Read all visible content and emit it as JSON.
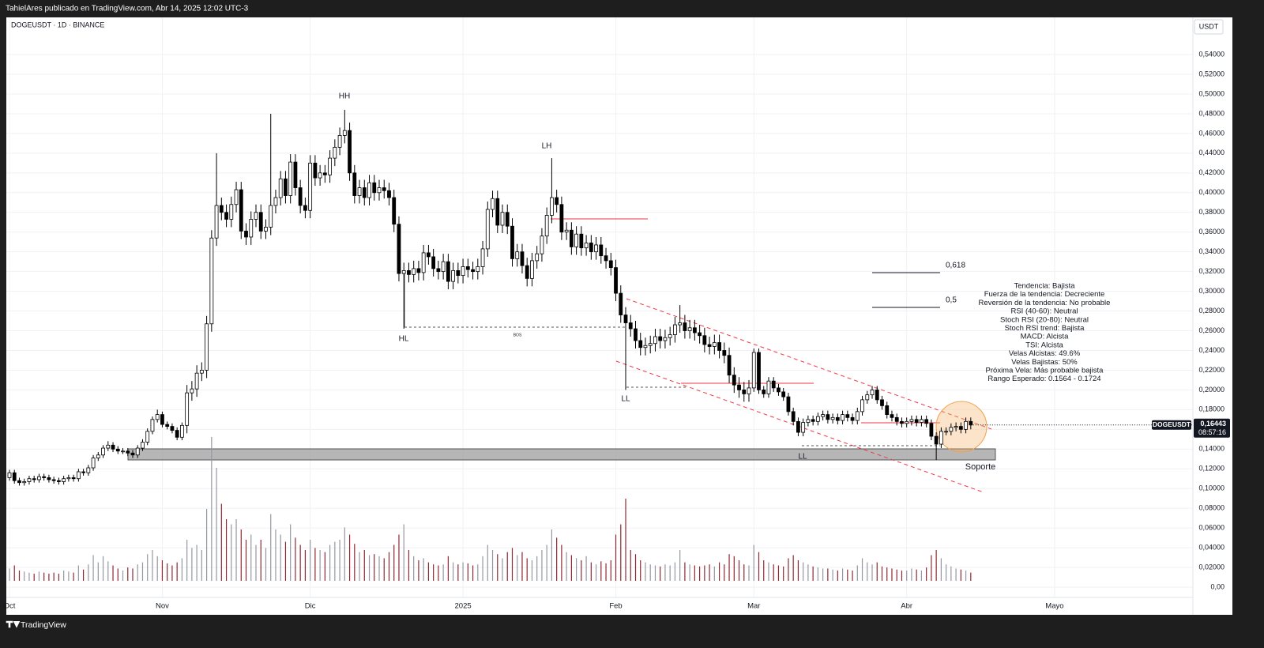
{
  "header": {
    "publisher": "TahielAres publicado en TradingView.com, Abr 14, 2025 12:02 UTC-3",
    "symbol": "DOGEUSDT · 1D · BINANCE",
    "currency": "USDT"
  },
  "chart_data": {
    "type": "candlestick",
    "x": [
      0,
      1,
      2,
      3,
      4,
      5,
      6,
      7,
      8,
      9,
      10,
      11,
      12,
      13,
      14,
      15,
      16,
      17,
      18,
      19,
      20,
      21,
      22,
      23,
      24,
      25,
      26,
      27,
      28,
      29,
      30,
      31,
      32,
      33,
      34,
      35,
      36,
      37,
      38,
      39,
      40,
      41,
      42,
      43,
      44,
      45,
      46,
      47,
      48,
      49,
      50,
      51,
      52,
      53,
      54,
      55,
      56,
      57,
      58,
      59,
      60,
      61,
      62,
      63,
      64,
      65,
      66,
      67,
      68,
      69,
      70,
      71,
      72,
      73,
      74,
      75,
      76,
      77,
      78,
      79,
      80,
      81,
      82,
      83,
      84,
      85,
      86,
      87,
      88,
      89,
      90,
      91,
      92,
      93,
      94,
      95,
      96,
      97,
      98,
      99,
      100,
      101,
      102,
      103,
      104,
      105,
      106,
      107,
      108,
      109,
      110,
      111,
      112,
      113,
      114,
      115,
      116,
      117,
      118,
      119,
      120,
      121,
      122,
      123,
      124,
      125,
      126,
      127,
      128,
      129,
      130,
      131,
      132,
      133,
      134,
      135,
      136,
      137,
      138,
      139,
      140,
      141,
      142,
      143,
      144,
      145,
      146,
      147,
      148,
      149,
      150,
      151,
      152,
      153,
      154,
      155,
      156,
      157,
      158,
      159,
      160,
      161,
      162,
      163,
      164,
      165,
      166,
      167,
      168,
      169,
      170,
      171,
      172,
      173,
      174,
      175,
      176,
      177,
      178,
      179,
      180,
      181,
      182,
      183,
      184,
      185,
      186,
      187,
      188,
      189,
      190,
      191,
      192,
      193,
      194,
      195
    ],
    "open": [
      0.111,
      0.116,
      0.108,
      0.106,
      0.107,
      0.11,
      0.109,
      0.112,
      0.111,
      0.109,
      0.108,
      0.107,
      0.11,
      0.111,
      0.11,
      0.117,
      0.116,
      0.121,
      0.131,
      0.134,
      0.141,
      0.144,
      0.14,
      0.138,
      0.138,
      0.136,
      0.134,
      0.141,
      0.147,
      0.158,
      0.17,
      0.175,
      0.165,
      0.163,
      0.159,
      0.152,
      0.164,
      0.197,
      0.201,
      0.217,
      0.22,
      0.267,
      0.354,
      0.387,
      0.38,
      0.373,
      0.388,
      0.403,
      0.361,
      0.355,
      0.373,
      0.38,
      0.361,
      0.365,
      0.387,
      0.395,
      0.414,
      0.397,
      0.431,
      0.405,
      0.387,
      0.382,
      0.43,
      0.415,
      0.42,
      0.418,
      0.435,
      0.446,
      0.458,
      0.463,
      0.42,
      0.397,
      0.405,
      0.395,
      0.41,
      0.4,
      0.405,
      0.402,
      0.395,
      0.368,
      0.318,
      0.321,
      0.317,
      0.323,
      0.319,
      0.339,
      0.335,
      0.323,
      0.32,
      0.33,
      0.31,
      0.321,
      0.316,
      0.325,
      0.322,
      0.32,
      0.325,
      0.343,
      0.383,
      0.394,
      0.367,
      0.38,
      0.366,
      0.333,
      0.34,
      0.326,
      0.313,
      0.331,
      0.338,
      0.356,
      0.377,
      0.395,
      0.388,
      0.36,
      0.362,
      0.345,
      0.358,
      0.344,
      0.349,
      0.34,
      0.347,
      0.336,
      0.331,
      0.324,
      0.298,
      0.276,
      0.268,
      0.262,
      0.25,
      0.243,
      0.245,
      0.247,
      0.254,
      0.25,
      0.253,
      0.256,
      0.266,
      0.268,
      0.26,
      0.263,
      0.258,
      0.255,
      0.246,
      0.244,
      0.248,
      0.24,
      0.235,
      0.215,
      0.205,
      0.2,
      0.196,
      0.202,
      0.238,
      0.2,
      0.196,
      0.209,
      0.202,
      0.198,
      0.193,
      0.178,
      0.168,
      0.157,
      0.167,
      0.17,
      0.168,
      0.173,
      0.175,
      0.17,
      0.172,
      0.169,
      0.175,
      0.172,
      0.169,
      0.178,
      0.19,
      0.195,
      0.2,
      0.19,
      0.184,
      0.175,
      0.172,
      0.168,
      0.166,
      0.168,
      0.17,
      0.167,
      0.17,
      0.166,
      0.153,
      0.145,
      0.158,
      0.158,
      0.162,
      0.163,
      0.16,
      0.168
    ],
    "high": [
      0.119,
      0.119,
      0.111,
      0.11,
      0.113,
      0.113,
      0.115,
      0.115,
      0.114,
      0.112,
      0.111,
      0.113,
      0.114,
      0.114,
      0.12,
      0.12,
      0.124,
      0.134,
      0.137,
      0.144,
      0.148,
      0.147,
      0.143,
      0.141,
      0.141,
      0.139,
      0.144,
      0.15,
      0.161,
      0.173,
      0.18,
      0.178,
      0.168,
      0.166,
      0.162,
      0.167,
      0.205,
      0.209,
      0.225,
      0.228,
      0.275,
      0.362,
      0.44,
      0.395,
      0.388,
      0.396,
      0.411,
      0.411,
      0.369,
      0.381,
      0.388,
      0.388,
      0.373,
      0.48,
      0.403,
      0.422,
      0.422,
      0.439,
      0.439,
      0.413,
      0.395,
      0.438,
      0.438,
      0.428,
      0.428,
      0.443,
      0.454,
      0.466,
      0.484,
      0.471,
      0.428,
      0.413,
      0.413,
      0.418,
      0.418,
      0.413,
      0.413,
      0.41,
      0.403,
      0.376,
      0.329,
      0.329,
      0.331,
      0.331,
      0.347,
      0.347,
      0.343,
      0.331,
      0.338,
      0.338,
      0.329,
      0.329,
      0.333,
      0.333,
      0.33,
      0.333,
      0.351,
      0.391,
      0.402,
      0.402,
      0.388,
      0.388,
      0.374,
      0.348,
      0.348,
      0.334,
      0.339,
      0.346,
      0.364,
      0.385,
      0.435,
      0.403,
      0.396,
      0.37,
      0.37,
      0.366,
      0.366,
      0.357,
      0.357,
      0.355,
      0.355,
      0.344,
      0.339,
      0.332,
      0.306,
      0.284,
      0.276,
      0.27,
      0.258,
      0.253,
      0.255,
      0.262,
      0.262,
      0.261,
      0.264,
      0.274,
      0.286,
      0.276,
      0.271,
      0.271,
      0.266,
      0.263,
      0.254,
      0.256,
      0.256,
      0.248,
      0.243,
      0.223,
      0.213,
      0.208,
      0.21,
      0.242,
      0.242,
      0.204,
      0.213,
      0.213,
      0.206,
      0.202,
      0.197,
      0.182,
      0.172,
      0.171,
      0.174,
      0.174,
      0.177,
      0.179,
      0.179,
      0.176,
      0.176,
      0.179,
      0.179,
      0.176,
      0.182,
      0.194,
      0.199,
      0.204,
      0.204,
      0.194,
      0.188,
      0.179,
      0.176,
      0.172,
      0.172,
      0.174,
      0.174,
      0.174,
      0.174,
      0.17,
      0.157,
      0.162,
      0.162,
      0.166,
      0.167,
      0.167,
      0.172,
      0.172
    ],
    "low": [
      0.108,
      0.105,
      0.103,
      0.103,
      0.104,
      0.106,
      0.106,
      0.108,
      0.106,
      0.105,
      0.104,
      0.104,
      0.107,
      0.107,
      0.107,
      0.113,
      0.113,
      0.118,
      0.128,
      0.131,
      0.138,
      0.137,
      0.135,
      0.135,
      0.133,
      0.131,
      0.131,
      0.138,
      0.144,
      0.155,
      0.167,
      0.162,
      0.16,
      0.156,
      0.149,
      0.149,
      0.156,
      0.189,
      0.193,
      0.209,
      0.212,
      0.259,
      0.346,
      0.372,
      0.365,
      0.365,
      0.38,
      0.353,
      0.347,
      0.347,
      0.365,
      0.353,
      0.353,
      0.357,
      0.379,
      0.387,
      0.389,
      0.389,
      0.397,
      0.379,
      0.374,
      0.374,
      0.407,
      0.407,
      0.41,
      0.41,
      0.427,
      0.438,
      0.45,
      0.412,
      0.389,
      0.389,
      0.387,
      0.387,
      0.392,
      0.392,
      0.394,
      0.387,
      0.36,
      0.31,
      0.262,
      0.309,
      0.309,
      0.311,
      0.311,
      0.327,
      0.315,
      0.312,
      0.312,
      0.302,
      0.302,
      0.308,
      0.308,
      0.314,
      0.312,
      0.312,
      0.317,
      0.335,
      0.375,
      0.359,
      0.359,
      0.358,
      0.325,
      0.325,
      0.318,
      0.305,
      0.305,
      0.323,
      0.33,
      0.348,
      0.369,
      0.38,
      0.352,
      0.352,
      0.337,
      0.337,
      0.336,
      0.336,
      0.332,
      0.332,
      0.328,
      0.323,
      0.316,
      0.29,
      0.268,
      0.2,
      0.254,
      0.242,
      0.235,
      0.235,
      0.237,
      0.239,
      0.242,
      0.242,
      0.245,
      0.248,
      0.258,
      0.252,
      0.252,
      0.25,
      0.247,
      0.238,
      0.236,
      0.236,
      0.232,
      0.227,
      0.207,
      0.197,
      0.192,
      0.188,
      0.188,
      0.198,
      0.196,
      0.192,
      0.192,
      0.198,
      0.194,
      0.189,
      0.174,
      0.164,
      0.153,
      0.153,
      0.163,
      0.164,
      0.164,
      0.169,
      0.166,
      0.166,
      0.165,
      0.165,
      0.168,
      0.165,
      0.165,
      0.174,
      0.186,
      0.191,
      0.186,
      0.18,
      0.171,
      0.168,
      0.164,
      0.162,
      0.162,
      0.164,
      0.163,
      0.163,
      0.162,
      0.149,
      0.129,
      0.141,
      0.154,
      0.154,
      0.158,
      0.156,
      0.156,
      0.16
    ],
    "close": [
      0.116,
      0.108,
      0.106,
      0.107,
      0.11,
      0.109,
      0.112,
      0.111,
      0.109,
      0.108,
      0.107,
      0.11,
      0.111,
      0.11,
      0.117,
      0.116,
      0.121,
      0.131,
      0.134,
      0.141,
      0.144,
      0.14,
      0.138,
      0.138,
      0.136,
      0.134,
      0.141,
      0.147,
      0.158,
      0.17,
      0.175,
      0.165,
      0.163,
      0.159,
      0.152,
      0.164,
      0.197,
      0.201,
      0.217,
      0.22,
      0.267,
      0.354,
      0.387,
      0.38,
      0.373,
      0.388,
      0.403,
      0.361,
      0.355,
      0.373,
      0.38,
      0.361,
      0.365,
      0.387,
      0.395,
      0.414,
      0.397,
      0.431,
      0.405,
      0.387,
      0.382,
      0.43,
      0.415,
      0.42,
      0.418,
      0.435,
      0.446,
      0.458,
      0.463,
      0.42,
      0.397,
      0.405,
      0.395,
      0.41,
      0.4,
      0.405,
      0.402,
      0.395,
      0.368,
      0.318,
      0.321,
      0.317,
      0.323,
      0.319,
      0.339,
      0.335,
      0.323,
      0.32,
      0.33,
      0.31,
      0.321,
      0.316,
      0.325,
      0.322,
      0.32,
      0.325,
      0.343,
      0.383,
      0.394,
      0.367,
      0.38,
      0.366,
      0.333,
      0.34,
      0.326,
      0.313,
      0.331,
      0.338,
      0.356,
      0.377,
      0.395,
      0.388,
      0.36,
      0.362,
      0.345,
      0.358,
      0.344,
      0.349,
      0.34,
      0.347,
      0.336,
      0.331,
      0.324,
      0.298,
      0.276,
      0.268,
      0.262,
      0.25,
      0.243,
      0.245,
      0.247,
      0.254,
      0.25,
      0.253,
      0.256,
      0.266,
      0.268,
      0.26,
      0.263,
      0.258,
      0.255,
      0.246,
      0.244,
      0.248,
      0.24,
      0.235,
      0.215,
      0.205,
      0.2,
      0.196,
      0.202,
      0.238,
      0.2,
      0.196,
      0.209,
      0.202,
      0.198,
      0.193,
      0.178,
      0.168,
      0.157,
      0.167,
      0.17,
      0.168,
      0.173,
      0.175,
      0.17,
      0.172,
      0.169,
      0.175,
      0.172,
      0.169,
      0.178,
      0.19,
      0.195,
      0.2,
      0.19,
      0.184,
      0.175,
      0.172,
      0.168,
      0.166,
      0.168,
      0.17,
      0.167,
      0.17,
      0.166,
      0.153,
      0.145,
      0.158,
      0.158,
      0.162,
      0.163,
      0.16,
      0.168,
      0.16443
    ],
    "volume": [
      1.2,
      1.5,
      1.0,
      0.9,
      0.8,
      0.7,
      0.9,
      0.8,
      0.7,
      0.8,
      0.7,
      1.0,
      0.9,
      0.8,
      1.5,
      1.1,
      1.6,
      2.5,
      1.8,
      2.4,
      1.9,
      1.5,
      1.2,
      1.0,
      1.3,
      1.2,
      1.6,
      1.8,
      2.6,
      3.0,
      2.4,
      2.0,
      1.7,
      1.5,
      1.8,
      2.2,
      4.0,
      3.2,
      3.5,
      3.0,
      7.0,
      14.0,
      11.0,
      7.5,
      6.0,
      5.5,
      6.0,
      5.0,
      4.0,
      4.5,
      3.5,
      4.0,
      3.2,
      6.5,
      5.0,
      4.5,
      3.8,
      5.5,
      4.2,
      3.5,
      3.0,
      4.0,
      3.2,
      3.0,
      2.8,
      3.5,
      3.8,
      4.0,
      5.2,
      4.5,
      3.6,
      2.8,
      3.0,
      2.5,
      2.6,
      2.4,
      2.2,
      2.8,
      3.5,
      4.5,
      5.5,
      3.0,
      2.4,
      2.0,
      2.2,
      1.8,
      1.6,
      1.5,
      1.6,
      2.4,
      1.8,
      1.6,
      1.8,
      1.7,
      1.5,
      1.6,
      2.4,
      3.5,
      3.0,
      2.6,
      2.2,
      2.8,
      3.2,
      2.5,
      2.8,
      2.2,
      2.0,
      2.4,
      3.0,
      3.5,
      5.0,
      4.2,
      3.5,
      2.8,
      2.5,
      2.2,
      2.0,
      2.4,
      1.8,
      1.6,
      1.9,
      1.7,
      2.0,
      4.5,
      5.5,
      8.0,
      3.0,
      2.6,
      2.0,
      1.8,
      1.6,
      1.5,
      1.4,
      1.6,
      1.5,
      1.8,
      3.0,
      1.8,
      1.6,
      1.5,
      1.4,
      1.5,
      1.6,
      1.4,
      1.8,
      1.6,
      2.6,
      2.4,
      2.0,
      1.6,
      1.5,
      3.5,
      2.8,
      2.0,
      1.8,
      1.6,
      1.5,
      1.4,
      2.2,
      2.5,
      2.0,
      1.8,
      1.6,
      1.4,
      1.3,
      1.2,
      1.2,
      1.1,
      1.0,
      1.2,
      1.1,
      1.0,
      1.5,
      2.2,
      1.8,
      1.6,
      1.8,
      1.4,
      1.3,
      1.2,
      1.1,
      1.0,
      1.0,
      1.2,
      1.1,
      1.0,
      1.3,
      2.5,
      3.0,
      2.2,
      1.6,
      1.4,
      1.2,
      1.1,
      1.0,
      0.8
    ],
    "xlim": [
      -0.64,
      240.06
    ],
    "xticks": [
      {
        "value": 0,
        "label": "Oct"
      },
      {
        "value": 31,
        "label": "Nov"
      },
      {
        "value": 61,
        "label": "Dic"
      },
      {
        "value": 92,
        "label": "2025"
      },
      {
        "value": 123,
        "label": "Feb"
      },
      {
        "value": 151,
        "label": "Mar"
      },
      {
        "value": 182,
        "label": "Abr"
      },
      {
        "value": 212,
        "label": "Mayo"
      }
    ],
    "ylim": [
      -0.0104,
      0.5777
    ],
    "yticks": [
      {
        "value": 0,
        "label": "0,00"
      },
      {
        "value": 0.02,
        "label": "0,02000"
      },
      {
        "value": 0.04,
        "label": "0,04000"
      },
      {
        "value": 0.06,
        "label": "0,06000"
      },
      {
        "value": 0.08,
        "label": "0,08000"
      },
      {
        "value": 0.1,
        "label": "0,10000"
      },
      {
        "value": 0.12,
        "label": "0,12000"
      },
      {
        "value": 0.14,
        "label": "0,14000"
      },
      {
        "value": 0.16,
        "label": "0,16000"
      },
      {
        "value": 0.18,
        "label": "0,18000"
      },
      {
        "value": 0.2,
        "label": "0,20000"
      },
      {
        "value": 0.22,
        "label": "0,22000"
      },
      {
        "value": 0.24,
        "label": "0,24000"
      },
      {
        "value": 0.26,
        "label": "0,26000"
      },
      {
        "value": 0.28,
        "label": "0,28000"
      },
      {
        "value": 0.3,
        "label": "0,30000"
      },
      {
        "value": 0.32,
        "label": "0,32000"
      },
      {
        "value": 0.34,
        "label": "0,34000"
      },
      {
        "value": 0.36,
        "label": "0,36000"
      },
      {
        "value": 0.38,
        "label": "0,38000"
      },
      {
        "value": 0.4,
        "label": "0,40000"
      },
      {
        "value": 0.42,
        "label": "0,42000"
      },
      {
        "value": 0.44,
        "label": "0,44000"
      },
      {
        "value": 0.46,
        "label": "0,46000"
      },
      {
        "value": 0.48,
        "label": "0,48000"
      },
      {
        "value": 0.5,
        "label": "0,50000"
      },
      {
        "value": 0.52,
        "label": "0,52000"
      },
      {
        "value": 0.54,
        "label": "0,54000"
      }
    ],
    "grid": true,
    "up_color": "#ffffff",
    "down_color": "#000000",
    "volume_up_color": "#9598a1",
    "volume_down_color": "#8c2a33"
  },
  "annotations": [
    "HH",
    "LH",
    "HL",
    "BOS",
    "LL",
    "LL",
    "Soporte"
  ],
  "fib_labels": [
    "0,618",
    "0,5"
  ],
  "indicator_panel": [
    "Tendencia: Bajista",
    "Fuerza de la tendencia: Decreciente",
    "Reversión de la tendencia: No probable",
    "RSI (40-60): Neutral",
    "Stoch RSI (20-80): Neutral",
    "Stoch RSI trend: Bajista",
    "MACD: Alcista",
    "TSI: Alcista",
    "Velas Alcistas: 49.6%",
    "Velas Bajistas: 50%",
    "Próxima Vela: Más probable bajista",
    "Rango Esperado: 0.1564 - 0.1724"
  ],
  "price_label": {
    "symbol": "DOGEUSDT",
    "price": "0,16443",
    "countdown": "08:57:16"
  },
  "footer": {
    "brand": "TradingView"
  }
}
